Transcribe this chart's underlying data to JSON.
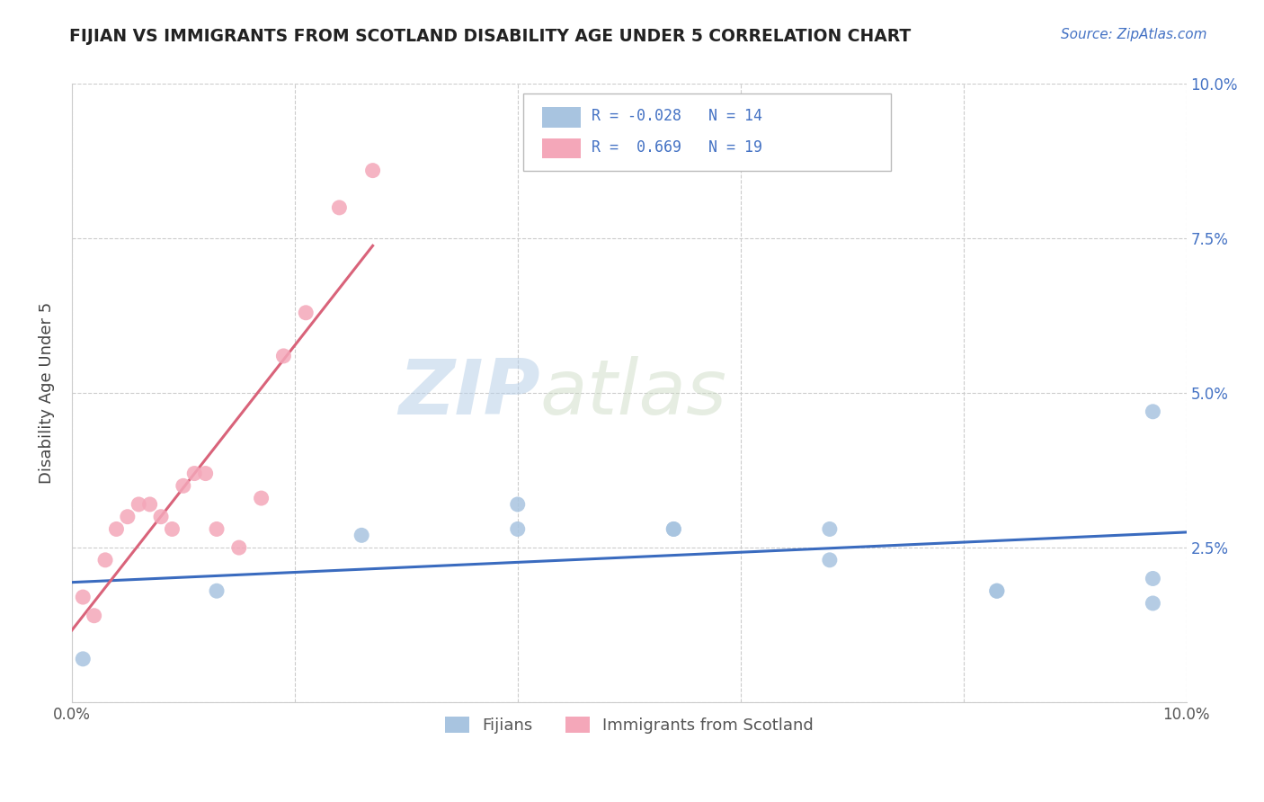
{
  "title": "FIJIAN VS IMMIGRANTS FROM SCOTLAND DISABILITY AGE UNDER 5 CORRELATION CHART",
  "source": "Source: ZipAtlas.com",
  "ylabel": "Disability Age Under 5",
  "xlim": [
    0.0,
    0.1
  ],
  "ylim": [
    0.0,
    0.1
  ],
  "xtick_positions": [
    0.0,
    0.02,
    0.04,
    0.06,
    0.08,
    0.1
  ],
  "ytick_positions": [
    0.0,
    0.025,
    0.05,
    0.075,
    0.1
  ],
  "xticklabels": [
    "0.0%",
    "",
    "",
    "",
    "",
    "10.0%"
  ],
  "yticklabels_right": [
    "",
    "2.5%",
    "5.0%",
    "7.5%",
    "10.0%"
  ],
  "fijian_color": "#a8c4e0",
  "scotland_color": "#f4a7b9",
  "fijian_line_color": "#3a6bbf",
  "scotland_line_color": "#d9637a",
  "fijian_R": "-0.028",
  "fijian_N": "14",
  "scotland_R": "0.669",
  "scotland_N": "19",
  "legend_entries": [
    "Fijians",
    "Immigrants from Scotland"
  ],
  "fijian_x": [
    0.001,
    0.013,
    0.026,
    0.04,
    0.04,
    0.054,
    0.054,
    0.068,
    0.068,
    0.083,
    0.083,
    0.097,
    0.097,
    0.097
  ],
  "fijian_y": [
    0.007,
    0.018,
    0.027,
    0.032,
    0.028,
    0.028,
    0.028,
    0.028,
    0.023,
    0.018,
    0.018,
    0.02,
    0.016,
    0.047
  ],
  "scotland_x": [
    0.001,
    0.002,
    0.003,
    0.004,
    0.005,
    0.006,
    0.007,
    0.008,
    0.009,
    0.01,
    0.011,
    0.012,
    0.013,
    0.015,
    0.017,
    0.019,
    0.021,
    0.024,
    0.027
  ],
  "scotland_y": [
    0.017,
    0.014,
    0.023,
    0.028,
    0.03,
    0.032,
    0.032,
    0.03,
    0.028,
    0.035,
    0.037,
    0.037,
    0.028,
    0.025,
    0.033,
    0.056,
    0.063,
    0.08,
    0.086
  ],
  "watermark_zip": "ZIP",
  "watermark_atlas": "atlas",
  "background_color": "#ffffff",
  "grid_color": "#cccccc",
  "title_color": "#222222"
}
